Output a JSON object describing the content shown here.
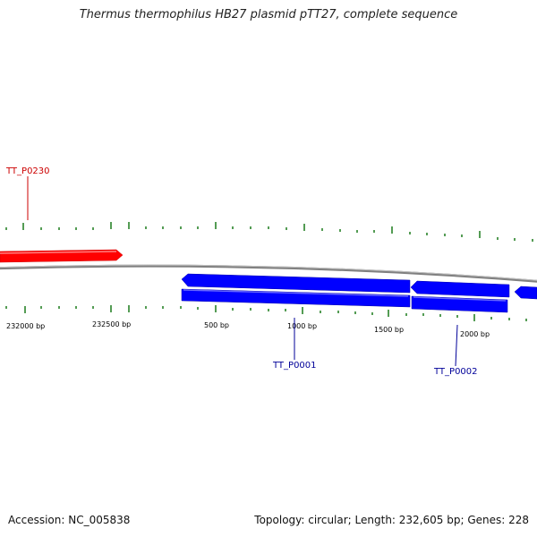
{
  "title": "Thermus thermophilus HB27 plasmid pTT27, complete sequence",
  "footer": {
    "accession": "Accession: NC_005838",
    "summary": "Topology: circular; Length: 232,605 bp; Genes: 228"
  },
  "colors": {
    "forward_gene": "#ff0000",
    "reverse_gene": "#0000ff",
    "backbone": "#808080",
    "ticks": "#1a7a1a",
    "reverse_label": "#000099",
    "forward_label": "#cc0000"
  },
  "genes": [
    {
      "id": "TT_P0230",
      "strand": "forward",
      "labeled": true
    },
    {
      "id": "TT_P0001",
      "strand": "reverse",
      "labeled": true
    },
    {
      "id": "TT_P0002",
      "strand": "reverse",
      "labeled": true
    },
    {
      "id": "reverse-gene-3",
      "strand": "reverse",
      "labeled": false
    },
    {
      "id": "reverse-gene-4",
      "strand": "reverse",
      "labeled": false
    }
  ],
  "scale_labels": [
    "232000 bp",
    "232500 bp",
    "500 bp",
    "1000 bp",
    "1500 bp",
    "2000 bp"
  ]
}
